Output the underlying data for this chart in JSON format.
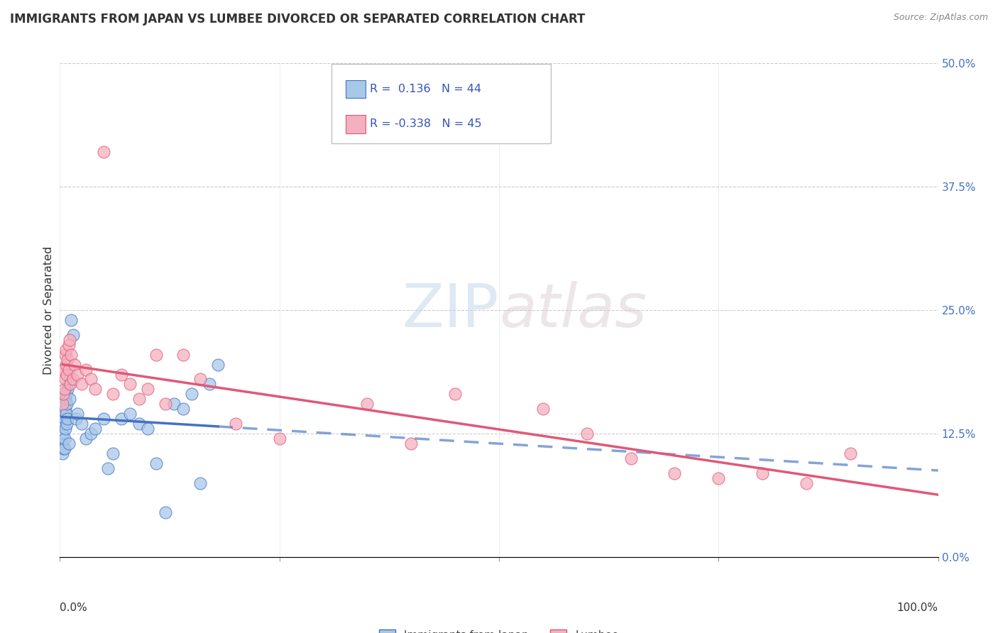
{
  "title": "IMMIGRANTS FROM JAPAN VS LUMBEE DIVORCED OR SEPARATED CORRELATION CHART",
  "source": "Source: ZipAtlas.com",
  "ylabel": "Divorced or Separated",
  "legend_label1": "Immigrants from Japan",
  "legend_label2": "Lumbee",
  "R1": 0.136,
  "N1": 44,
  "R2": -0.338,
  "N2": 45,
  "xlim": [
    0.0,
    100.0
  ],
  "ylim": [
    0.0,
    50.0
  ],
  "yticks": [
    0.0,
    12.5,
    25.0,
    37.5,
    50.0
  ],
  "xticks": [
    0.0,
    25.0,
    50.0,
    75.0,
    100.0
  ],
  "color_blue": "#a8c8e8",
  "color_pink": "#f4b0be",
  "color_blue_line": "#4472c4",
  "color_pink_line": "#e05878",
  "color_right_axis": "#4472c4",
  "watermark_zip": "ZIP",
  "watermark_atlas": "atlas",
  "blue_points_x": [
    0.2,
    0.3,
    0.3,
    0.4,
    0.4,
    0.5,
    0.5,
    0.5,
    0.6,
    0.6,
    0.6,
    0.7,
    0.7,
    0.8,
    0.8,
    0.9,
    0.9,
    1.0,
    1.0,
    1.1,
    1.2,
    1.3,
    1.5,
    1.8,
    2.0,
    2.5,
    3.0,
    3.5,
    4.0,
    5.0,
    5.5,
    6.0,
    7.0,
    8.0,
    9.0,
    10.0,
    11.0,
    12.0,
    13.0,
    14.0,
    15.0,
    16.0,
    17.0,
    18.0
  ],
  "blue_points_y": [
    11.5,
    10.5,
    12.5,
    11.0,
    13.5,
    11.0,
    14.0,
    12.0,
    13.0,
    15.0,
    16.0,
    14.5,
    16.5,
    13.5,
    15.5,
    14.0,
    17.0,
    11.5,
    17.5,
    16.0,
    18.0,
    24.0,
    22.5,
    14.0,
    14.5,
    13.5,
    12.0,
    12.5,
    13.0,
    14.0,
    9.0,
    10.5,
    14.0,
    14.5,
    13.5,
    13.0,
    9.5,
    4.5,
    15.5,
    15.0,
    16.5,
    7.5,
    17.5,
    19.5
  ],
  "pink_points_x": [
    0.3,
    0.4,
    0.4,
    0.5,
    0.6,
    0.6,
    0.7,
    0.7,
    0.8,
    0.9,
    1.0,
    1.0,
    1.1,
    1.2,
    1.3,
    1.5,
    1.7,
    2.0,
    2.5,
    3.0,
    3.5,
    4.0,
    5.0,
    6.0,
    7.0,
    8.0,
    9.0,
    10.0,
    11.0,
    12.0,
    14.0,
    16.0,
    20.0,
    25.0,
    35.0,
    40.0,
    45.0,
    55.0,
    60.0,
    65.0,
    70.0,
    75.0,
    80.0,
    85.0,
    90.0
  ],
  "pink_points_y": [
    15.5,
    16.5,
    19.0,
    17.0,
    18.0,
    20.5,
    19.5,
    21.0,
    18.5,
    20.0,
    19.0,
    21.5,
    22.0,
    17.5,
    20.5,
    18.0,
    19.5,
    18.5,
    17.5,
    19.0,
    18.0,
    17.0,
    41.0,
    16.5,
    18.5,
    17.5,
    16.0,
    17.0,
    20.5,
    15.5,
    20.5,
    18.0,
    13.5,
    12.0,
    15.5,
    11.5,
    16.5,
    15.0,
    12.5,
    10.0,
    8.5,
    8.0,
    8.5,
    7.5,
    10.5
  ]
}
